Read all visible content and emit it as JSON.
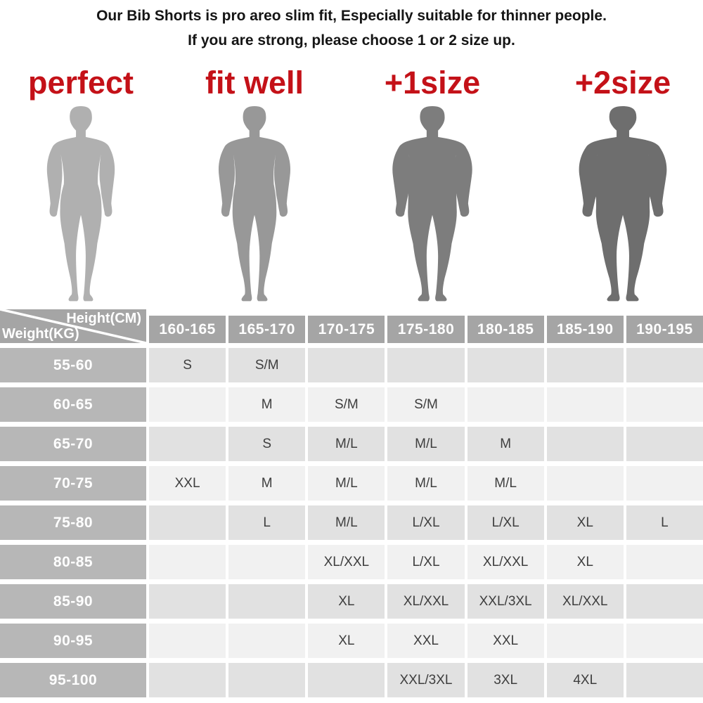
{
  "header": {
    "line1": "Our Bib Shorts is pro areo slim fit, Especially suitable for thinner people.",
    "line2": "If you are strong, please choose 1 or 2 size up."
  },
  "colors": {
    "accent_red": "#c41118",
    "table_header_bg": "#a5a5a5",
    "row_label_bg": "#b7b7b7",
    "row_odd_bg": "#e1e1e1",
    "row_even_bg": "#f1f1f1",
    "cell_text": "#3e3e3e"
  },
  "figures": [
    {
      "label": "perfect",
      "color": "#b0b0b0",
      "build": 1.7,
      "head": 1.35
    },
    {
      "label": "fit well",
      "color": "#989898",
      "build": 1.8,
      "head": 1.4
    },
    {
      "label": "+1size",
      "color": "#7d7d7d",
      "build": 2.0,
      "head": 1.5
    },
    {
      "label": "+2size",
      "color": "#6e6e6e",
      "build": 2.2,
      "head": 1.65
    }
  ],
  "size_table": {
    "corner": {
      "top_right": "Height(CM)",
      "bottom_left": "Weight(KG)"
    },
    "height_columns": [
      "160-165",
      "165-170",
      "170-175",
      "175-180",
      "180-185",
      "185-190",
      "190-195"
    ],
    "rows": [
      {
        "weight": "55-60",
        "cells": [
          "S",
          "S/M",
          "",
          "",
          "",
          "",
          ""
        ]
      },
      {
        "weight": "60-65",
        "cells": [
          "",
          "M",
          "S/M",
          "S/M",
          "",
          "",
          ""
        ]
      },
      {
        "weight": "65-70",
        "cells": [
          "",
          "S",
          "M/L",
          "M/L",
          "M",
          "",
          ""
        ]
      },
      {
        "weight": "70-75",
        "cells": [
          "XXL",
          "M",
          "M/L",
          "M/L",
          "M/L",
          "",
          ""
        ]
      },
      {
        "weight": "75-80",
        "cells": [
          "",
          "L",
          "M/L",
          "L/XL",
          "L/XL",
          "XL",
          "L"
        ]
      },
      {
        "weight": "80-85",
        "cells": [
          "",
          "",
          "XL/XXL",
          "L/XL",
          "XL/XXL",
          "XL",
          ""
        ]
      },
      {
        "weight": "85-90",
        "cells": [
          "",
          "",
          "XL",
          "XL/XXL",
          "XXL/3XL",
          "XL/XXL",
          ""
        ]
      },
      {
        "weight": "90-95",
        "cells": [
          "",
          "",
          "XL",
          "XXL",
          "XXL",
          "",
          ""
        ]
      },
      {
        "weight": "95-100",
        "cells": [
          "",
          "",
          "",
          "XXL/3XL",
          "3XL",
          "4XL",
          ""
        ]
      }
    ]
  }
}
